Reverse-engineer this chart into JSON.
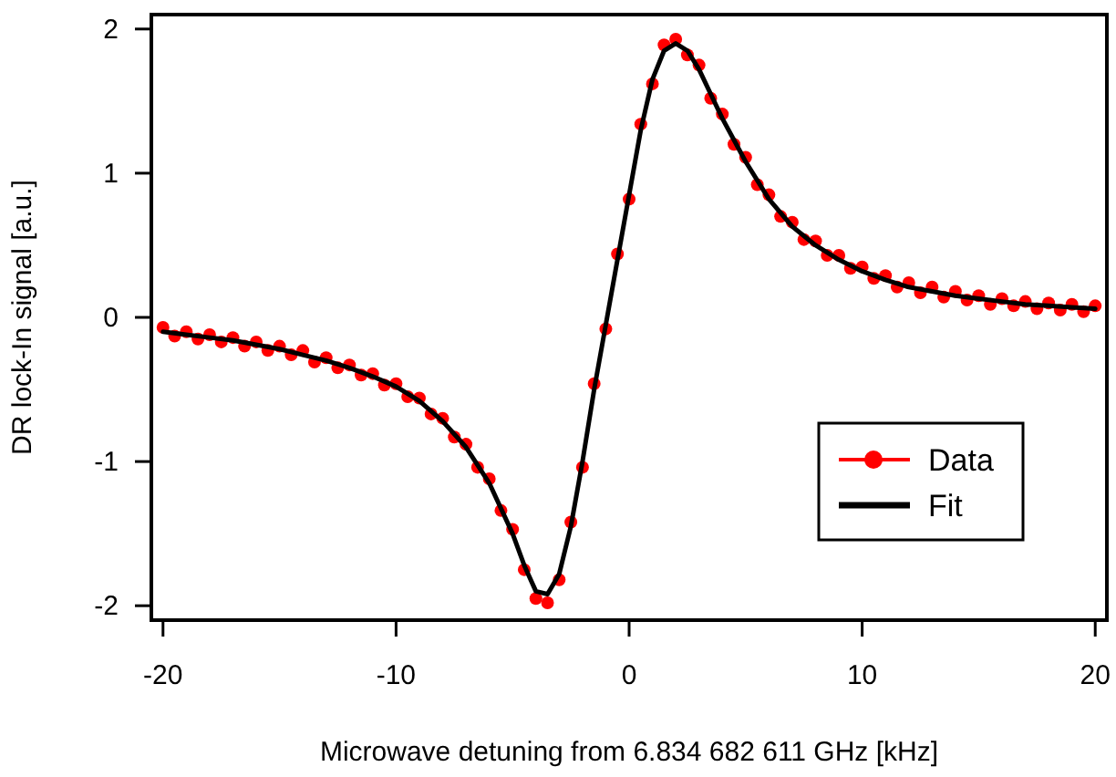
{
  "chart_data": {
    "type": "line",
    "xlabel": "Microwave detuning from 6.834 682 611 GHz [kHz]",
    "ylabel": "DR lock-In signal [a.u.]",
    "xlim": [
      -20.5,
      20.5
    ],
    "ylim": [
      -2.1,
      2.1
    ],
    "xticks": [
      -20,
      -10,
      0,
      10,
      20
    ],
    "yticks": [
      -2,
      -1,
      0,
      1,
      2
    ],
    "grid": false,
    "legend": "bottom right",
    "series": [
      {
        "name": "Data",
        "type": "scatter",
        "marker": "circle",
        "color": "#ff0000",
        "x": [
          -20,
          -19.5,
          -19,
          -18.5,
          -18,
          -17.5,
          -17,
          -16.5,
          -16,
          -15.5,
          -15,
          -14.5,
          -14,
          -13.5,
          -13,
          -12.5,
          -12,
          -11.5,
          -11,
          -10.5,
          -10,
          -9.5,
          -9,
          -8.5,
          -8,
          -7.5,
          -7,
          -6.5,
          -6,
          -5.5,
          -5,
          -4.5,
          -4,
          -3.5,
          -3,
          -2.5,
          -2,
          -1.5,
          -1,
          -0.5,
          0,
          0.5,
          1,
          1.5,
          2,
          2.5,
          3,
          3.5,
          4,
          4.5,
          5,
          5.5,
          6,
          6.5,
          7,
          7.5,
          8,
          8.5,
          9,
          9.5,
          10,
          10.5,
          11,
          11.5,
          12,
          12.5,
          13,
          13.5,
          14,
          14.5,
          15,
          15.5,
          16,
          16.5,
          17,
          17.5,
          18,
          18.5,
          19,
          19.5,
          20
        ],
        "values": [
          -0.07,
          -0.13,
          -0.1,
          -0.15,
          -0.12,
          -0.17,
          -0.14,
          -0.2,
          -0.17,
          -0.23,
          -0.2,
          -0.26,
          -0.23,
          -0.31,
          -0.28,
          -0.35,
          -0.33,
          -0.4,
          -0.39,
          -0.47,
          -0.46,
          -0.55,
          -0.56,
          -0.67,
          -0.7,
          -0.83,
          -0.88,
          -1.04,
          -1.12,
          -1.34,
          -1.47,
          -1.75,
          -1.95,
          -1.98,
          -1.82,
          -1.42,
          -1.04,
          -0.46,
          -0.08,
          0.44,
          0.82,
          1.34,
          1.62,
          1.89,
          1.93,
          1.82,
          1.75,
          1.52,
          1.41,
          1.2,
          1.11,
          0.92,
          0.85,
          0.7,
          0.66,
          0.54,
          0.53,
          0.43,
          0.43,
          0.34,
          0.35,
          0.27,
          0.29,
          0.21,
          0.24,
          0.17,
          0.21,
          0.14,
          0.18,
          0.12,
          0.15,
          0.09,
          0.13,
          0.08,
          0.11,
          0.06,
          0.1,
          0.05,
          0.09,
          0.04,
          0.08
        ]
      },
      {
        "name": "Fit",
        "marker": "none",
        "color": "#000000",
        "x": [
          -20,
          -19,
          -18,
          -17,
          -16,
          -15,
          -14,
          -13,
          -12,
          -11,
          -10,
          -9,
          -8,
          -7,
          -6,
          -5,
          -4.5,
          -4,
          -3.5,
          -3,
          -2.5,
          -2,
          -1.5,
          -1,
          -0.5,
          0,
          0.5,
          1,
          1.5,
          2,
          2.5,
          3,
          3.5,
          4,
          5,
          6,
          7,
          8,
          9,
          10,
          11,
          12,
          13,
          14,
          15,
          16,
          17,
          18,
          19,
          20
        ],
        "values": [
          -0.1,
          -0.12,
          -0.14,
          -0.16,
          -0.19,
          -0.22,
          -0.26,
          -0.3,
          -0.35,
          -0.41,
          -0.48,
          -0.58,
          -0.72,
          -0.9,
          -1.15,
          -1.5,
          -1.72,
          -1.9,
          -1.92,
          -1.78,
          -1.45,
          -1.0,
          -0.5,
          -0.05,
          0.4,
          0.85,
          1.3,
          1.65,
          1.85,
          1.9,
          1.85,
          1.72,
          1.55,
          1.38,
          1.08,
          0.82,
          0.63,
          0.5,
          0.4,
          0.32,
          0.26,
          0.21,
          0.18,
          0.15,
          0.13,
          0.11,
          0.09,
          0.08,
          0.07,
          0.06
        ]
      }
    ]
  }
}
